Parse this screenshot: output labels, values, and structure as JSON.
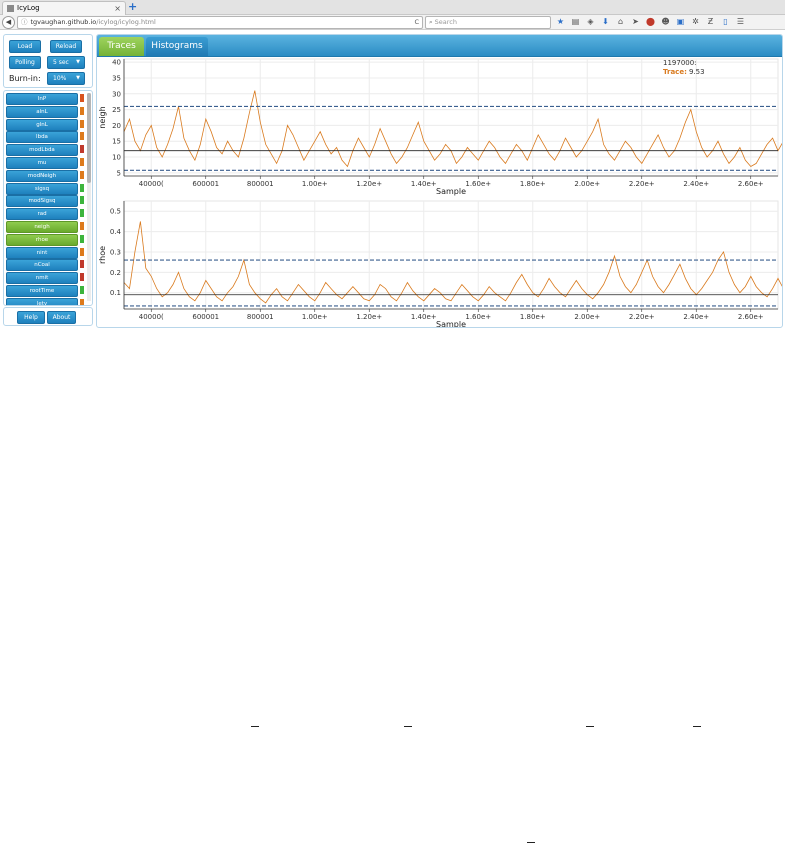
{
  "browser": {
    "tab_title": "IcyLog",
    "tab_close": "×",
    "new_tab": "+",
    "back": "◀",
    "url_host": "tgvaughan.github.io",
    "url_path": "/icylog/icylog.html",
    "url_info": "ⓘ",
    "reload": "C",
    "search_placeholder": "Search",
    "toolbar_icons": [
      "star-icon",
      "reading-list-icon",
      "pocket-icon",
      "download-icon",
      "home-icon",
      "send-icon",
      "adblock-icon",
      "ghost-icon",
      "screen-icon",
      "puzzle-icon",
      "z-icon",
      "bookmark-icon",
      "menu-icon"
    ]
  },
  "controls": {
    "load": "Load",
    "reload": "Reload",
    "polling": "Polling",
    "polling_interval": "5 sec",
    "burnin_label": "Burn-in:",
    "burnin_value": "10%"
  },
  "variables": [
    {
      "name": "lnP",
      "ess": "#d9531e"
    },
    {
      "name": "alnL",
      "ess": "#dd7a1c"
    },
    {
      "name": "glnL",
      "ess": "#dd7a1c"
    },
    {
      "name": "lbda",
      "ess": "#dd7a1c"
    },
    {
      "name": "modLbda",
      "ess": "#c0392b"
    },
    {
      "name": "mu",
      "ess": "#dd7a1c"
    },
    {
      "name": "modNeigh",
      "ess": "#dd7a1c"
    },
    {
      "name": "sigsq",
      "ess": "#3cb43c"
    },
    {
      "name": "modSigsq",
      "ess": "#3cb43c"
    },
    {
      "name": "rad",
      "ess": "#3cb43c"
    },
    {
      "name": "neigh",
      "ess": "#dd7a1c",
      "selected": true
    },
    {
      "name": "rhoe",
      "ess": "#3cb43c",
      "selected": true
    },
    {
      "name": "nint",
      "ess": "#dd7a1c"
    },
    {
      "name": "nCoal",
      "ess": "#c0392b"
    },
    {
      "name": "nmit",
      "ess": "#c0392b"
    },
    {
      "name": "rootTime",
      "ess": "#3cb43c"
    },
    {
      "name": "lety",
      "ess": "#dd7a1c"
    }
  ],
  "bottom_buttons": {
    "help": "Help",
    "about": "About"
  },
  "tabs": {
    "traces": "Traces",
    "histograms": "Histograms"
  },
  "tooltip": {
    "sample": "1197000:",
    "label": "Trace:",
    "value": "9.53"
  },
  "chart_data": [
    {
      "type": "line",
      "ylabel": "neigh",
      "xlabel": "Sample",
      "ylim": [
        4,
        41
      ],
      "yticks": [
        5,
        10,
        15,
        20,
        25,
        30,
        35,
        40
      ],
      "xlim": [
        300000,
        2700000
      ],
      "xticks": [
        {
          "v": 400000,
          "label": "40000("
        },
        {
          "v": 600000,
          "label": "600001"
        },
        {
          "v": 800000,
          "label": "800001"
        },
        {
          "v": 1000000,
          "label": "1.00e+"
        },
        {
          "v": 1200000,
          "label": "1.20e+"
        },
        {
          "v": 1400000,
          "label": "1.40e+"
        },
        {
          "v": 1600000,
          "label": "1.60e+"
        },
        {
          "v": 1800000,
          "label": "1.80e+"
        },
        {
          "v": 2000000,
          "label": "2.00e+"
        },
        {
          "v": 2200000,
          "label": "2.20e+"
        },
        {
          "v": 2400000,
          "label": "2.40e+"
        },
        {
          "v": 2600000,
          "label": "2.60e+"
        }
      ],
      "mean": 12.0,
      "hpd": [
        5.8,
        26.0
      ],
      "grid": true,
      "series_color": "#d97a1e",
      "series": [
        {
          "x_start": 300000,
          "x_step": 20000,
          "values": [
            18,
            22,
            15,
            12,
            17,
            20,
            13,
            10,
            14,
            19,
            26,
            16,
            12,
            9,
            14,
            22,
            18,
            13,
            11,
            15,
            12,
            10,
            16,
            24,
            31,
            21,
            14,
            11,
            8,
            12,
            20,
            17,
            13,
            9,
            12,
            15,
            18,
            14,
            11,
            13,
            9,
            7,
            12,
            16,
            13,
            10,
            14,
            19,
            15,
            11,
            8,
            10,
            13,
            17,
            21,
            15,
            12,
            9,
            11,
            14,
            12,
            8,
            10,
            13,
            11,
            9,
            12,
            15,
            13,
            10,
            8,
            11,
            14,
            12,
            9,
            13,
            17,
            14,
            11,
            9,
            12,
            16,
            13,
            10,
            12,
            15,
            18,
            22,
            14,
            11,
            9,
            12,
            15,
            13,
            10,
            8,
            11,
            14,
            17,
            13,
            10,
            12,
            16,
            21,
            25,
            18,
            13,
            10,
            12,
            15,
            11,
            8,
            10,
            13,
            9,
            7,
            8,
            11,
            14,
            16,
            12,
            15,
            19,
            24,
            18,
            13
          ]
        }
      ]
    },
    {
      "type": "line",
      "ylabel": "rhoe",
      "xlabel": "Sample",
      "ylim": [
        0.02,
        0.55
      ],
      "yticks": [
        0.1,
        0.2,
        0.3,
        0.4,
        0.5
      ],
      "xlim": [
        300000,
        2700000
      ],
      "xticks": [
        {
          "v": 400000,
          "label": "40000("
        },
        {
          "v": 600000,
          "label": "600001"
        },
        {
          "v": 800000,
          "label": "800001"
        },
        {
          "v": 1000000,
          "label": "1.00e+"
        },
        {
          "v": 1200000,
          "label": "1.20e+"
        },
        {
          "v": 1400000,
          "label": "1.40e+"
        },
        {
          "v": 1600000,
          "label": "1.60e+"
        },
        {
          "v": 1800000,
          "label": "1.80e+"
        },
        {
          "v": 2000000,
          "label": "2.00e+"
        },
        {
          "v": 2200000,
          "label": "2.20e+"
        },
        {
          "v": 2400000,
          "label": "2.40e+"
        },
        {
          "v": 2600000,
          "label": "2.60e+"
        }
      ],
      "mean": 0.09,
      "hpd": [
        0.035,
        0.26
      ],
      "grid": true,
      "series_color": "#d97a1e",
      "series": [
        {
          "x_start": 300000,
          "x_step": 20000,
          "values": [
            0.15,
            0.12,
            0.3,
            0.45,
            0.22,
            0.18,
            0.12,
            0.08,
            0.1,
            0.14,
            0.2,
            0.12,
            0.08,
            0.06,
            0.1,
            0.16,
            0.12,
            0.08,
            0.06,
            0.1,
            0.13,
            0.18,
            0.26,
            0.14,
            0.1,
            0.07,
            0.05,
            0.09,
            0.12,
            0.08,
            0.06,
            0.1,
            0.14,
            0.11,
            0.08,
            0.06,
            0.1,
            0.15,
            0.12,
            0.09,
            0.07,
            0.1,
            0.13,
            0.1,
            0.07,
            0.06,
            0.09,
            0.14,
            0.12,
            0.08,
            0.06,
            0.1,
            0.15,
            0.11,
            0.08,
            0.06,
            0.09,
            0.12,
            0.1,
            0.07,
            0.06,
            0.1,
            0.14,
            0.11,
            0.08,
            0.06,
            0.09,
            0.13,
            0.1,
            0.08,
            0.06,
            0.1,
            0.15,
            0.19,
            0.14,
            0.1,
            0.08,
            0.12,
            0.17,
            0.13,
            0.1,
            0.08,
            0.12,
            0.16,
            0.12,
            0.09,
            0.07,
            0.1,
            0.14,
            0.2,
            0.28,
            0.18,
            0.13,
            0.1,
            0.14,
            0.2,
            0.26,
            0.18,
            0.13,
            0.1,
            0.14,
            0.19,
            0.24,
            0.17,
            0.12,
            0.09,
            0.12,
            0.16,
            0.2,
            0.26,
            0.3,
            0.2,
            0.14,
            0.1,
            0.13,
            0.18,
            0.13,
            0.1,
            0.08,
            0.12,
            0.17,
            0.12,
            0.09,
            0.14,
            0.18,
            0.12
          ]
        }
      ]
    }
  ]
}
